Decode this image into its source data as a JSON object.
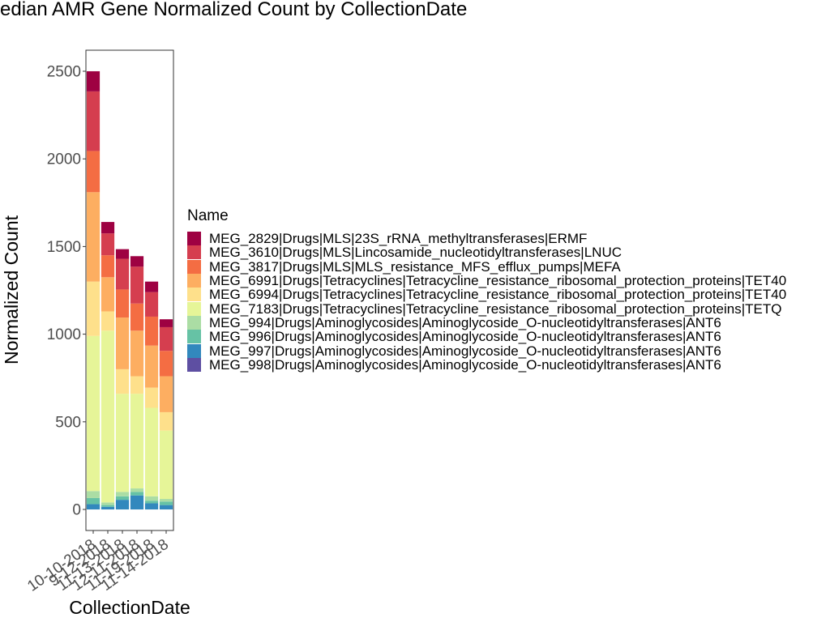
{
  "chart_data": {
    "type": "bar",
    "stacked": true,
    "title": "Median AMR Gene Normalized Count by CollectionDate",
    "xlabel": "CollectionDate",
    "ylabel": "Normalized Count",
    "ylim": [
      -120,
      2620
    ],
    "yticks": [
      0,
      500,
      1000,
      1500,
      2000,
      2500
    ],
    "grid": false,
    "legend_title": "Name",
    "legend_position": "right",
    "categories": [
      "10-10-2018",
      "9-12-2018",
      "11-13-2018",
      "12-11-2018",
      "11-19-2018",
      "11-14-2018"
    ],
    "series": [
      {
        "name": "MEG_998|Drugs|Aminoglycosides|Aminoglycoside_O-nucleotidyltransferases|ANT6",
        "color": "#5E4FA2",
        "values": [
          0,
          0,
          0,
          0,
          0,
          0
        ]
      },
      {
        "name": "MEG_997|Drugs|Aminoglycosides|Aminoglycoside_O-nucleotidyltransferases|ANT6",
        "color": "#3288BD",
        "values": [
          30,
          15,
          55,
          80,
          35,
          25
        ]
      },
      {
        "name": "MEG_996|Drugs|Aminoglycosides|Aminoglycoside_O-nucleotidyltransferases|ANT6",
        "color": "#66C2A5",
        "values": [
          35,
          10,
          20,
          20,
          15,
          20
        ]
      },
      {
        "name": "MEG_994|Drugs|Aminoglycosides|Aminoglycoside_O-nucleotidyltransferases|ANT6",
        "color": "#ABDDA4",
        "values": [
          40,
          15,
          25,
          20,
          25,
          15
        ]
      },
      {
        "name": "MEG_7183|Drugs|Tetracyclines|Tetracycline_resistance_ribosomal_protection_proteins|TETQ",
        "color": "#E6F598",
        "values": [
          885,
          980,
          560,
          540,
          505,
          390
        ]
      },
      {
        "name": "MEG_6994|Drugs|Tetracyclines|Tetracycline_resistance_ribosomal_protection_proteins|TET40",
        "color": "#FEE08B",
        "values": [
          310,
          110,
          140,
          100,
          115,
          105
        ]
      },
      {
        "name": "MEG_6991|Drugs|Tetracyclines|Tetracycline_resistance_ribosomal_protection_proteins|TET40",
        "color": "#FDAE61",
        "values": [
          510,
          195,
          295,
          260,
          240,
          205
        ]
      },
      {
        "name": "MEG_3817|Drugs|MLS|MLS_resistance_MFS_efflux_pumps|MEFA",
        "color": "#F46D43",
        "values": [
          235,
          125,
          160,
          155,
          165,
          145
        ]
      },
      {
        "name": "MEG_3610|Drugs|MLS|Lincosamide_nucleotidyltransferases|LNUC",
        "color": "#D53E4F",
        "values": [
          340,
          125,
          175,
          210,
          140,
          135
        ]
      },
      {
        "name": "MEG_2829|Drugs|MLS|23S_rRNA_methyltransferases|ERMF",
        "color": "#9E0142",
        "values": [
          115,
          65,
          55,
          60,
          60,
          45
        ]
      }
    ]
  }
}
